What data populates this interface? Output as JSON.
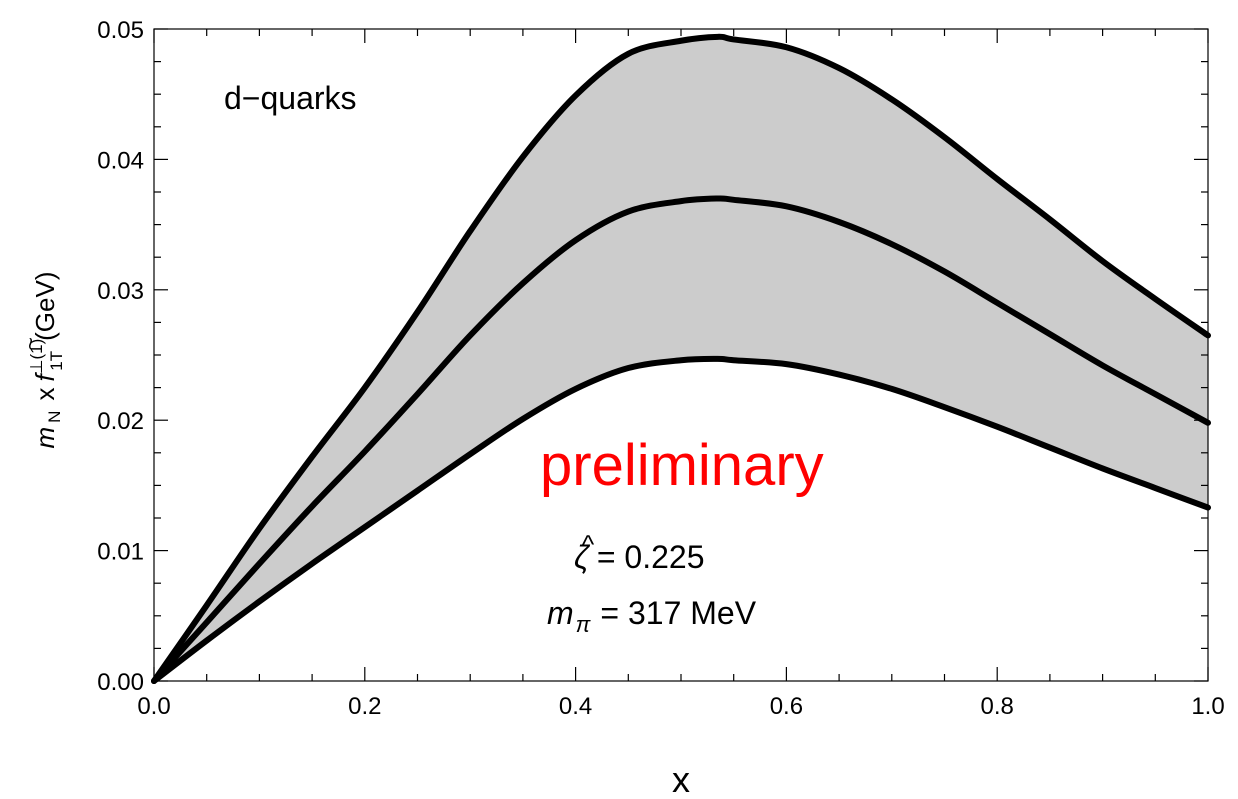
{
  "chart_data": {
    "type": "area",
    "xlabel": "x",
    "ylabel": {
      "prefix": "m",
      "prefix_sub": "N",
      "x_symbol": "x",
      "func": "f",
      "func_accent": "~",
      "func_sup": "⊥(1)",
      "func_sub": "1T",
      "unit": "(GeV)"
    },
    "xlim": [
      0.0,
      1.0
    ],
    "ylim": [
      0.0,
      0.05
    ],
    "grid": false,
    "x_ticks": [
      "0.0",
      "0.2",
      "0.4",
      "0.6",
      "0.8",
      "1.0"
    ],
    "y_ticks": [
      "0.00",
      "0.01",
      "0.02",
      "0.03",
      "0.04",
      "0.05"
    ],
    "x": [
      0.0,
      0.05,
      0.1,
      0.15,
      0.2,
      0.25,
      0.3,
      0.35,
      0.4,
      0.45,
      0.5,
      0.535,
      0.55,
      0.6,
      0.65,
      0.7,
      0.75,
      0.8,
      0.85,
      0.9,
      0.95,
      1.0
    ],
    "series": [
      {
        "role": "upper",
        "values": [
          0.0,
          0.0058,
          0.0117,
          0.0172,
          0.0225,
          0.0283,
          0.0345,
          0.0402,
          0.0449,
          0.0481,
          0.0491,
          0.0494,
          0.0492,
          0.0486,
          0.047,
          0.0446,
          0.0417,
          0.0385,
          0.0354,
          0.0322,
          0.0293,
          0.0265
        ]
      },
      {
        "role": "central",
        "values": [
          0.0,
          0.0045,
          0.009,
          0.0134,
          0.0176,
          0.022,
          0.0265,
          0.0305,
          0.0338,
          0.036,
          0.0368,
          0.037,
          0.0369,
          0.0364,
          0.0352,
          0.0335,
          0.0314,
          0.029,
          0.0266,
          0.0242,
          0.022,
          0.0198
        ]
      },
      {
        "role": "lower",
        "values": [
          0.0,
          0.0031,
          0.0061,
          0.009,
          0.0118,
          0.0146,
          0.0174,
          0.0201,
          0.0224,
          0.024,
          0.0246,
          0.0247,
          0.0246,
          0.0243,
          0.0235,
          0.0224,
          0.021,
          0.0195,
          0.0179,
          0.0163,
          0.0148,
          0.0133
        ]
      }
    ],
    "band_color": "#cccccc",
    "line_color": "#000000",
    "annotations": {
      "label": "d−quarks",
      "watermark": "preliminary",
      "watermark_color": "#ff0000",
      "zeta_symbol": "ζ",
      "zeta_accent": "^",
      "zeta_value": "= 0.225",
      "mpi_symbol": "m",
      "mpi_sub": "π",
      "mpi_value": "= 317 MeV"
    }
  }
}
